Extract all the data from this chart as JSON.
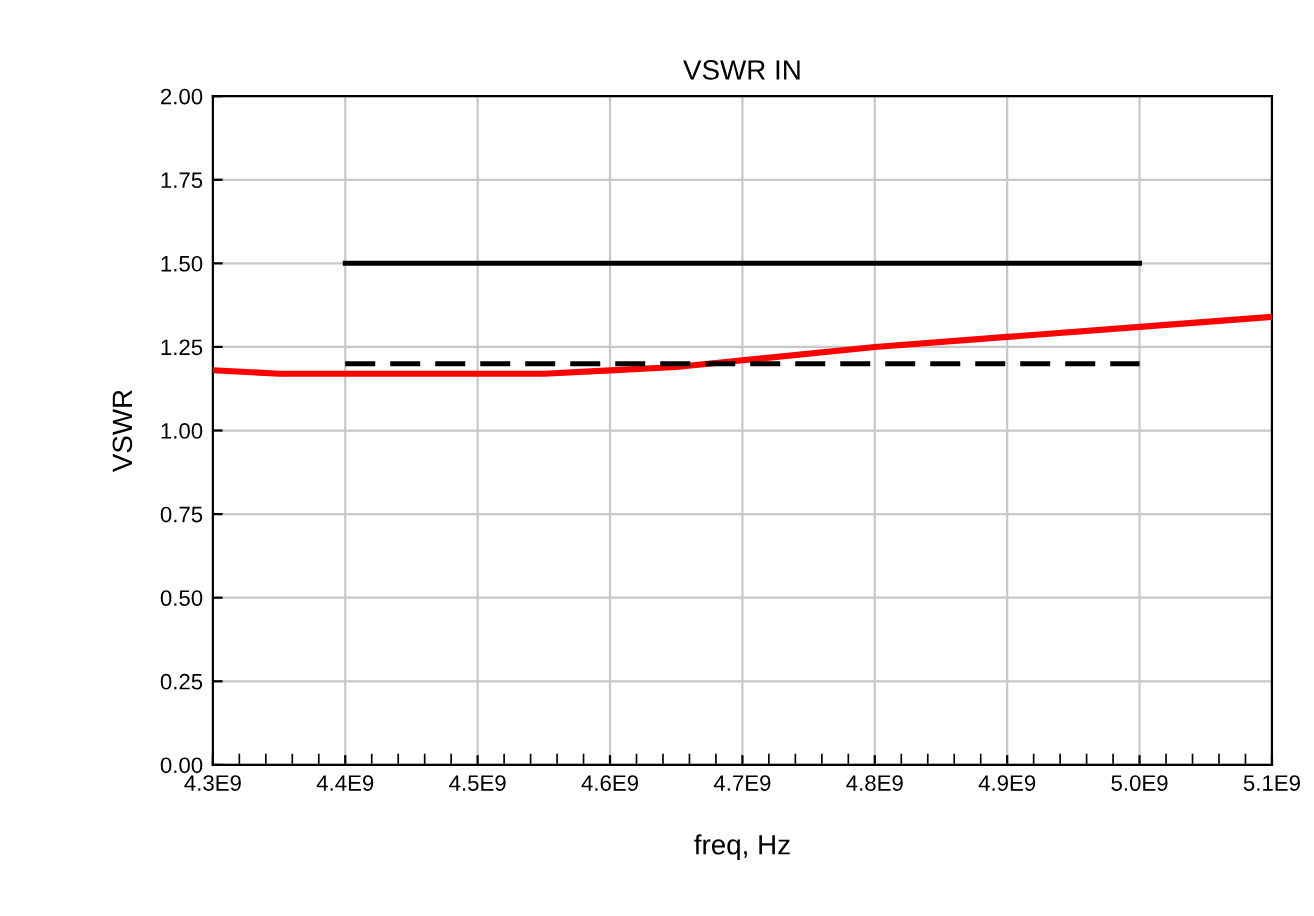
{
  "chart_data": {
    "type": "line",
    "title": "VSWR IN",
    "xlabel": "freq, Hz",
    "ylabel": "VSWR",
    "xlim": [
      4300000000.0,
      5100000000.0
    ],
    "xticks": [
      {
        "value": 4300000000.0,
        "label": "4.3E9"
      },
      {
        "value": 4400000000.0,
        "label": "4.4E9"
      },
      {
        "value": 4500000000.0,
        "label": "4.5E9"
      },
      {
        "value": 4600000000.0,
        "label": "4.6E9"
      },
      {
        "value": 4700000000.0,
        "label": "4.7E9"
      },
      {
        "value": 4800000000.0,
        "label": "4.8E9"
      },
      {
        "value": 4900000000.0,
        "label": "4.9E9"
      },
      {
        "value": 5000000000.0,
        "label": "5.0E9"
      },
      {
        "value": 5100000000.0,
        "label": "5.1E9"
      }
    ],
    "ylim": [
      0,
      2
    ],
    "yticks": [
      {
        "value": 0,
        "label": "0.00"
      },
      {
        "value": 0.25,
        "label": "0.25"
      },
      {
        "value": 0.5,
        "label": "0.50"
      },
      {
        "value": 0.75,
        "label": "0.75"
      },
      {
        "value": 1.0,
        "label": "1.00"
      },
      {
        "value": 1.25,
        "label": "1.25"
      },
      {
        "value": 1.5,
        "label": "1.50"
      },
      {
        "value": 1.75,
        "label": "1.75"
      },
      {
        "value": 2.0,
        "label": "2.00"
      }
    ],
    "grid": true,
    "marker": "none",
    "series": [
      {
        "color": "#ff0000",
        "line_style": "solid",
        "x": [
          4300000000.0,
          4350000000.0,
          4400000000.0,
          4500000000.0,
          4550000000.0,
          4600000000.0,
          4650000000.0,
          4700000000.0,
          4800000000.0,
          4900000000.0,
          5000000000.0,
          5100000000.0
        ],
        "values": [
          1.18,
          1.17,
          1.17,
          1.17,
          1.17,
          1.18,
          1.19,
          1.21,
          1.25,
          1.28,
          1.31,
          1.34
        ]
      },
      {
        "color": "#000000",
        "line_style": "solid",
        "x": [
          4400000000.0,
          5000000000.0
        ],
        "values": [
          1.5,
          1.5
        ]
      },
      {
        "color": "#000000",
        "line_style": "dashed",
        "x": [
          4400000000.0,
          5000000000.0
        ],
        "values": [
          1.2,
          1.2
        ]
      }
    ]
  }
}
